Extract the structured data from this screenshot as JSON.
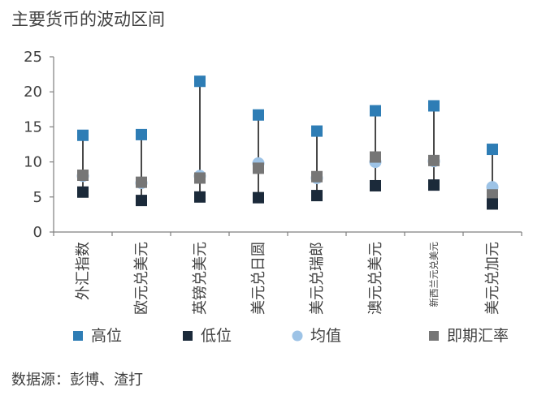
{
  "title": "主要货币的波动区间",
  "source": "数据源：彭博、渣打",
  "chart_data": {
    "type": "scatter",
    "categories": [
      "外汇指数",
      "欧元兑美元",
      "英镑兑美元",
      "美元兑日圆",
      "美元兑瑞郎",
      "澳元兑美元",
      "新西兰元兑美元",
      "美元兑加元"
    ],
    "ylim": [
      0,
      25
    ],
    "yticks": [
      0,
      5,
      10,
      15,
      20,
      25
    ],
    "series": [
      {
        "name": "高位",
        "color": "#2e7db5",
        "values": [
          13.8,
          13.9,
          21.5,
          16.7,
          14.4,
          17.3,
          18.0,
          11.8
        ]
      },
      {
        "name": "低位",
        "color": "#1b2a3a",
        "values": [
          5.7,
          4.5,
          5.0,
          4.9,
          5.2,
          6.6,
          6.7,
          4.0
        ]
      },
      {
        "name": "均值",
        "color": "#9dc3e6",
        "values": [
          8.0,
          7.0,
          8.0,
          9.8,
          7.7,
          10.0,
          10.1,
          6.4
        ]
      },
      {
        "name": "即期汇率",
        "color": "#767676",
        "values": [
          8.1,
          7.1,
          7.7,
          9.1,
          7.9,
          10.7,
          10.2,
          5.3
        ]
      }
    ],
    "legend": "bottom"
  }
}
